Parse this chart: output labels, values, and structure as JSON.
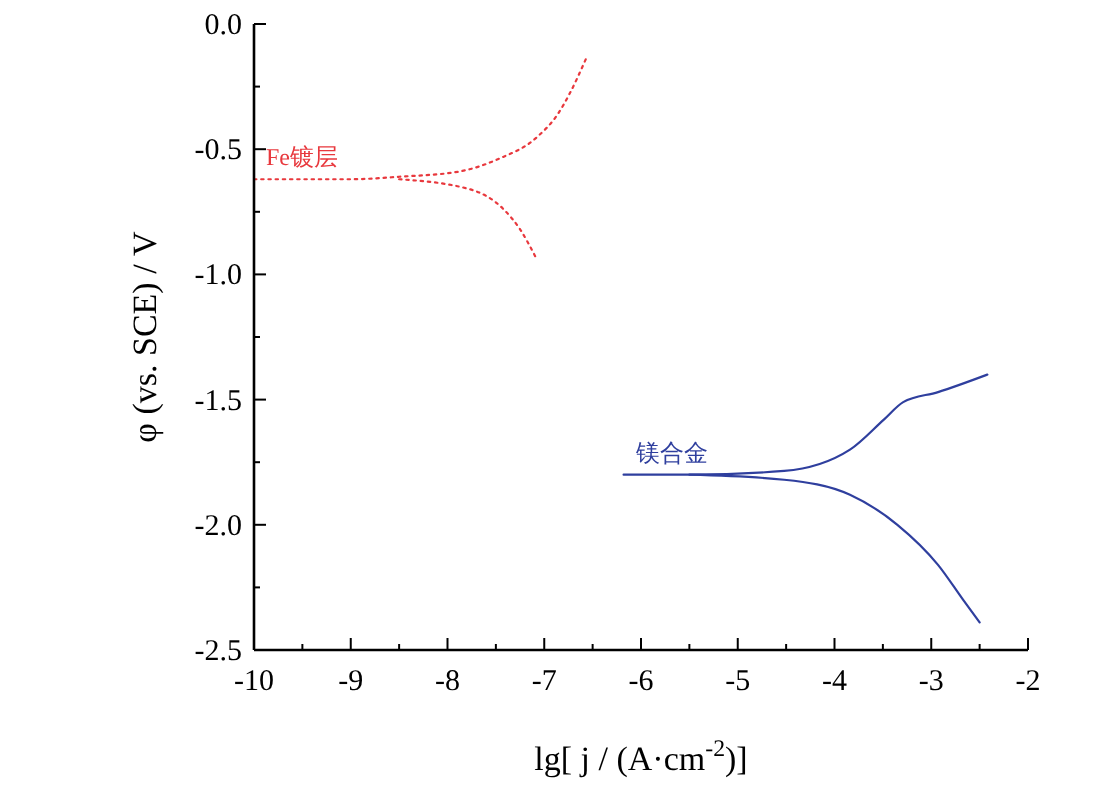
{
  "chart_data": {
    "type": "line",
    "xlabel": "lg[ j / (A·cm$^{-2}$)]",
    "ylabel": "φ (vs. SCE) / V",
    "xlim": [
      -10,
      -2
    ],
    "ylim": [
      -2.5,
      0
    ],
    "xticks": [
      -10,
      {
        "value": -9.5,
        "label": null
      },
      -9,
      {
        "value": -8.5,
        "label": null
      },
      -8,
      {
        "value": -7.5,
        "label": null
      },
      -7,
      {
        "value": -6.5,
        "label": null
      },
      -6,
      {
        "value": -5.5,
        "label": null
      },
      -5,
      {
        "value": -4.5,
        "label": null
      },
      -4,
      {
        "value": -3.5,
        "label": null
      },
      -3,
      {
        "value": -2.5,
        "label": null
      },
      -2
    ],
    "yticks": [
      {
        "value": 0,
        "label": "0.0"
      },
      {
        "value": -0.25,
        "label": null
      },
      -0.5,
      {
        "value": -0.75,
        "label": null
      },
      {
        "value": -1,
        "label": "-1.0"
      },
      {
        "value": -1.25,
        "label": null
      },
      -1.5,
      {
        "value": -1.75,
        "label": null
      },
      {
        "value": -2,
        "label": "-2.0"
      },
      {
        "value": -2.25,
        "label": null
      },
      -2.5
    ],
    "series": [
      {
        "name": "Fe镀层",
        "color": "#e8383d",
        "line_style": "dotted",
        "x": [
          -10,
          -9,
          -8.5,
          -7.89,
          -7.48,
          -7.07,
          -6.86,
          -6.74,
          -6.57
        ],
        "values": [
          -0.62,
          -0.62,
          -0.61,
          -0.59,
          -0.54,
          -0.45,
          -0.36,
          -0.28,
          -0.14
        ]
      },
      {
        "color": "#e8383d",
        "line_style": "dotted",
        "x": [
          -8.5,
          -7.77,
          -7.42,
          -7.25,
          -7.09
        ],
        "values": [
          -0.62,
          -0.66,
          -0.74,
          -0.82,
          -0.93
        ]
      },
      {
        "name": "镁合金",
        "color": "#2f3f9e",
        "line_style": "solid",
        "x": [
          -6.18,
          -5.5,
          -4.52,
          -3.84,
          -3.49,
          -3.29,
          -2.93,
          -2.42
        ],
        "values": [
          -1.8,
          -1.8,
          -1.785,
          -1.7,
          -1.58,
          -1.51,
          -1.47,
          -1.4
        ]
      },
      {
        "color": "#2f3f9e",
        "line_style": "solid",
        "x": [
          -5.5,
          -4.52,
          -3.84,
          -3.35,
          -2.93,
          -2.67,
          -2.5
        ],
        "values": [
          -1.8,
          -1.82,
          -1.88,
          -2.0,
          -2.16,
          -2.3,
          -2.39
        ]
      }
    ]
  }
}
